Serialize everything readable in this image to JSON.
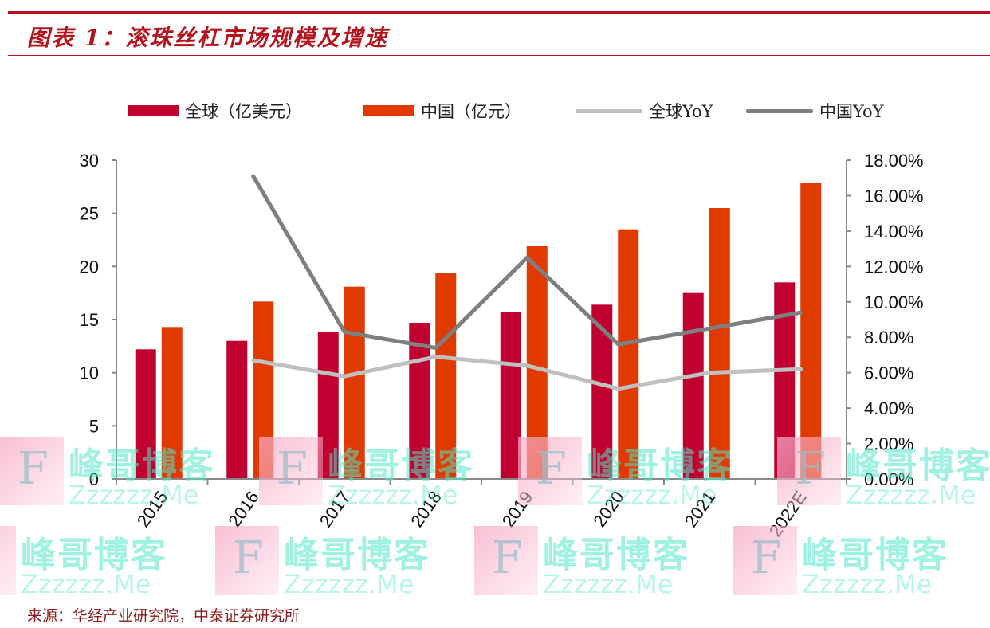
{
  "header": {
    "title": "图表 1：滚珠丝杠市场规模及增速"
  },
  "legend": [
    {
      "label": "全球（亿美元）",
      "type": "bar",
      "color": "#c0002e"
    },
    {
      "label": "中国（亿元）",
      "type": "bar",
      "color": "#e03a00"
    },
    {
      "label": "全球YoY",
      "type": "line",
      "color": "#c0c0c0"
    },
    {
      "label": "中国YoY",
      "type": "line",
      "color": "#7f7f7f"
    }
  ],
  "axes": {
    "left_ticks": [
      "0",
      "5",
      "10",
      "15",
      "20",
      "25",
      "30"
    ],
    "right_ticks": [
      "0.00%",
      "2.00%",
      "4.00%",
      "6.00%",
      "8.00%",
      "10.00%",
      "12.00%",
      "14.00%",
      "16.00%",
      "18.00%"
    ]
  },
  "footer": {
    "source": "来源：华经产业研究院，中泰证券研究所"
  },
  "watermark": {
    "letter": "F",
    "text_cn": "峰哥博客",
    "text_en": "Zzzzzz.Me"
  },
  "chart_data": {
    "type": "bar",
    "title": "滚珠丝杠市场规模及增速",
    "categories": [
      "2015",
      "2016",
      "2017",
      "2018",
      "2019",
      "2020",
      "2021",
      "2022E"
    ],
    "series": [
      {
        "name": "全球（亿美元）",
        "type": "bar",
        "axis": "left",
        "color": "#c0002e",
        "values": [
          12.2,
          13.0,
          13.8,
          14.7,
          15.7,
          16.4,
          17.5,
          18.5
        ]
      },
      {
        "name": "中国（亿元）",
        "type": "bar",
        "axis": "left",
        "color": "#e03a00",
        "values": [
          14.3,
          16.7,
          18.1,
          19.4,
          21.9,
          23.5,
          25.5,
          27.9
        ]
      },
      {
        "name": "全球YoY",
        "type": "line",
        "axis": "right",
        "color": "#c0c0c0",
        "values": [
          null,
          6.7,
          5.8,
          6.9,
          6.4,
          5.1,
          6.0,
          6.2
        ]
      },
      {
        "name": "中国YoY",
        "type": "line",
        "axis": "right",
        "color": "#7f7f7f",
        "values": [
          null,
          17.1,
          8.3,
          7.4,
          12.5,
          7.6,
          8.5,
          9.4
        ]
      }
    ],
    "xlabel": "",
    "ylabel": "",
    "ylim": [
      0,
      30
    ],
    "y2lim": [
      0,
      18
    ],
    "y2_format": "percent",
    "grid": false,
    "legend_position": "top"
  }
}
